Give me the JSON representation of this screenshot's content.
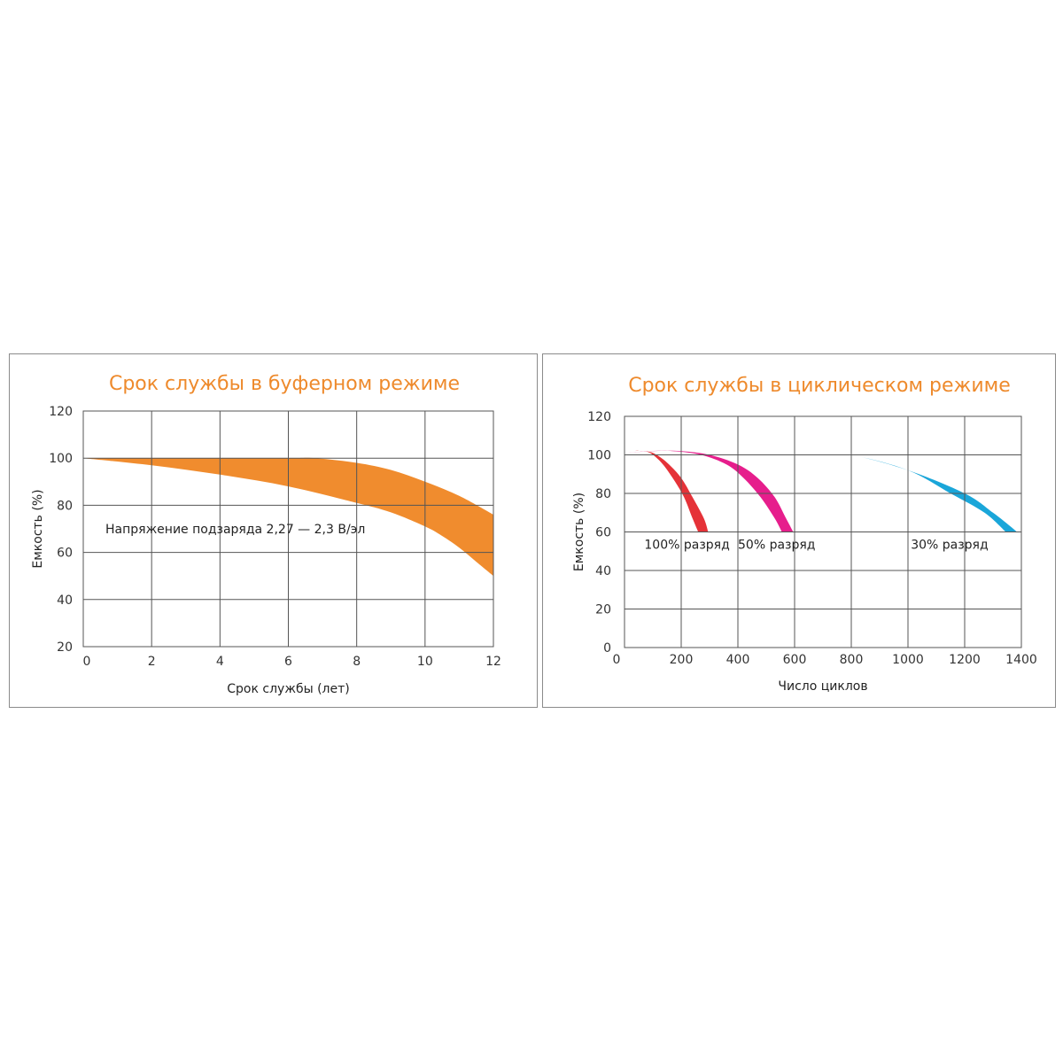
{
  "chart_data": [
    {
      "type": "area",
      "title": "Срок службы в буферном режиме",
      "xlabel": "Срок службы (лет)",
      "ylabel": "Емкость (%)",
      "xlim": [
        0,
        12
      ],
      "ylim": [
        20,
        120
      ],
      "x_ticks": [
        0,
        2,
        4,
        6,
        8,
        10,
        12
      ],
      "y_ticks": [
        20,
        40,
        60,
        80,
        100,
        120
      ],
      "grid": true,
      "annotation": "Напряжение подзаряда 2,27 — 2,3 В/эл",
      "band_color": "#f08c2e",
      "series": [
        {
          "x": [
            0,
            2,
            4,
            6,
            6.8,
            8,
            9,
            10,
            11,
            12
          ],
          "values": [
            100,
            100,
            100,
            100,
            100,
            98,
            95,
            90,
            84,
            76
          ]
        },
        {
          "x": [
            0,
            2,
            4,
            6,
            8,
            9,
            10,
            10.5,
            11,
            11.5,
            12
          ],
          "values": [
            100,
            97,
            93,
            88,
            81,
            77,
            71,
            67,
            62,
            56,
            50
          ]
        }
      ]
    },
    {
      "type": "line",
      "title": "Срок службы в циклическом режиме",
      "xlabel": "Число циклов",
      "ylabel": "Емкость (%)",
      "xlim": [
        0,
        1400
      ],
      "ylim": [
        0,
        120
      ],
      "x_ticks": [
        0,
        200,
        400,
        600,
        800,
        1000,
        1200,
        1400
      ],
      "y_ticks": [
        0,
        20,
        40,
        60,
        80,
        100,
        120
      ],
      "grid": true,
      "series": [
        {
          "label": "100% разряд",
          "color": "#e53238",
          "x_outer": [
            0,
            30,
            60,
            100,
            150,
            200,
            240,
            280,
            295
          ],
          "x_inner": [
            0,
            30,
            60,
            90,
            130,
            170,
            210,
            240,
            260
          ],
          "values": [
            101,
            102,
            102,
            101,
            96,
            88,
            78,
            67,
            60
          ]
        },
        {
          "label": "50% разряд",
          "color": "#e61e8c",
          "x_outer": [
            0,
            100,
            200,
            300,
            400,
            470,
            530,
            570,
            595
          ],
          "x_inner": [
            0,
            90,
            170,
            270,
            360,
            420,
            480,
            530,
            555
          ],
          "values": [
            101,
            102,
            102,
            100,
            95,
            88,
            78,
            67,
            60
          ]
        },
        {
          "label": "30% разряд",
          "color": "#1aa6d9",
          "x_outer": [
            0,
            200,
            400,
            600,
            800,
            1000,
            1200,
            1300,
            1385
          ],
          "x_inner": [
            0,
            200,
            400,
            600,
            800,
            1000,
            1150,
            1270,
            1345
          ],
          "values": [
            101,
            104,
            105,
            104,
            100,
            92,
            80,
            70,
            60
          ]
        }
      ]
    }
  ]
}
